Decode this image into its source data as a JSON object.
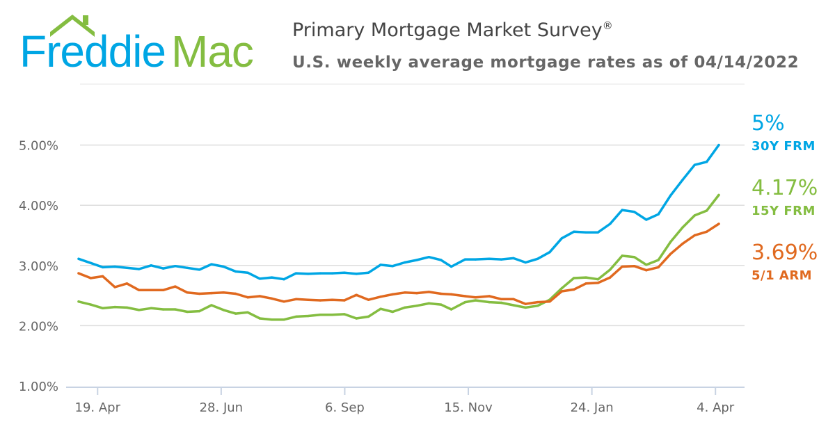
{
  "logo": {
    "text_part1": "Freddie",
    "text_part2": "Mac"
  },
  "header": {
    "title": "Primary Mortgage Market Survey",
    "title_mark": "®",
    "subtitle": "U.S. weekly average mortgage rates as of 04/14/2022"
  },
  "colors": {
    "blue": "#00a6e4",
    "green": "#84bd41",
    "orange": "#e0691f",
    "grid": "#dddddd",
    "axis_text": "#666666"
  },
  "chart_data": {
    "type": "line",
    "title": "",
    "xlabel": "",
    "ylabel": "",
    "ylim": [
      1.0,
      6.0
    ],
    "yticks": [
      "1.00%",
      "2.00%",
      "3.00%",
      "4.00%",
      "5.00%"
    ],
    "ytick_values": [
      1,
      2,
      3,
      4,
      5
    ],
    "xticks": [
      {
        "label": "19. Apr",
        "date": "2021-04-19"
      },
      {
        "label": "28. Jun",
        "date": "2021-06-28"
      },
      {
        "label": "6. Sep",
        "date": "2021-09-06"
      },
      {
        "label": "15. Nov",
        "date": "2021-11-15"
      },
      {
        "label": "24. Jan",
        "date": "2022-01-24"
      },
      {
        "label": "4. Apr",
        "date": "2022-04-04"
      }
    ],
    "grid": true,
    "legend": "right",
    "x": [
      "2021-04-08",
      "2021-04-15",
      "2021-04-22",
      "2021-04-29",
      "2021-05-06",
      "2021-05-13",
      "2021-05-20",
      "2021-05-27",
      "2021-06-03",
      "2021-06-10",
      "2021-06-17",
      "2021-06-24",
      "2021-07-01",
      "2021-07-08",
      "2021-07-15",
      "2021-07-22",
      "2021-07-29",
      "2021-08-05",
      "2021-08-12",
      "2021-08-19",
      "2021-08-26",
      "2021-09-02",
      "2021-09-09",
      "2021-09-16",
      "2021-09-23",
      "2021-09-30",
      "2021-10-07",
      "2021-10-14",
      "2021-10-21",
      "2021-10-28",
      "2021-11-04",
      "2021-11-10",
      "2021-11-18",
      "2021-11-24",
      "2021-12-02",
      "2021-12-09",
      "2021-12-16",
      "2021-12-23",
      "2021-12-30",
      "2022-01-06",
      "2022-01-13",
      "2022-01-20",
      "2022-01-27",
      "2022-02-03",
      "2022-02-10",
      "2022-02-17",
      "2022-02-24",
      "2022-03-03",
      "2022-03-10",
      "2022-03-17",
      "2022-03-24",
      "2022-03-31",
      "2022-04-07",
      "2022-04-14"
    ],
    "series": [
      {
        "name": "30Y FRM",
        "latest": "5%",
        "color": "#00a6e4",
        "values": [
          3.11,
          3.04,
          2.97,
          2.98,
          2.96,
          2.94,
          3.0,
          2.95,
          2.99,
          2.96,
          2.93,
          3.02,
          2.98,
          2.9,
          2.88,
          2.78,
          2.8,
          2.77,
          2.87,
          2.86,
          2.87,
          2.87,
          2.88,
          2.86,
          2.88,
          3.01,
          2.99,
          3.05,
          3.09,
          3.14,
          3.09,
          2.98,
          3.1,
          3.1,
          3.11,
          3.1,
          3.12,
          3.05,
          3.11,
          3.22,
          3.45,
          3.56,
          3.55,
          3.55,
          3.69,
          3.92,
          3.89,
          3.76,
          3.85,
          4.16,
          4.42,
          4.67,
          4.72,
          5.0
        ]
      },
      {
        "name": "15Y FRM",
        "latest": "4.17%",
        "color": "#84bd41",
        "values": [
          2.4,
          2.35,
          2.29,
          2.31,
          2.3,
          2.26,
          2.29,
          2.27,
          2.27,
          2.23,
          2.24,
          2.34,
          2.26,
          2.2,
          2.22,
          2.12,
          2.1,
          2.1,
          2.15,
          2.16,
          2.18,
          2.18,
          2.19,
          2.12,
          2.15,
          2.28,
          2.23,
          2.3,
          2.33,
          2.37,
          2.35,
          2.27,
          2.39,
          2.42,
          2.39,
          2.38,
          2.34,
          2.3,
          2.33,
          2.43,
          2.62,
          2.79,
          2.8,
          2.77,
          2.93,
          3.16,
          3.14,
          3.01,
          3.09,
          3.39,
          3.63,
          3.83,
          3.91,
          4.17
        ]
      },
      {
        "name": "5/1 ARM",
        "latest": "3.69%",
        "color": "#e0691f",
        "values": [
          2.87,
          2.79,
          2.82,
          2.64,
          2.7,
          2.59,
          2.59,
          2.59,
          2.65,
          2.55,
          2.53,
          2.54,
          2.55,
          2.53,
          2.47,
          2.49,
          2.45,
          2.4,
          2.44,
          2.43,
          2.42,
          2.43,
          2.42,
          2.51,
          2.43,
          2.48,
          2.52,
          2.55,
          2.54,
          2.56,
          2.53,
          2.52,
          2.49,
          2.47,
          2.49,
          2.44,
          2.44,
          2.36,
          2.39,
          2.4,
          2.57,
          2.6,
          2.7,
          2.71,
          2.8,
          2.98,
          2.99,
          2.92,
          2.97,
          3.19,
          3.36,
          3.5,
          3.56,
          3.69
        ]
      }
    ]
  }
}
